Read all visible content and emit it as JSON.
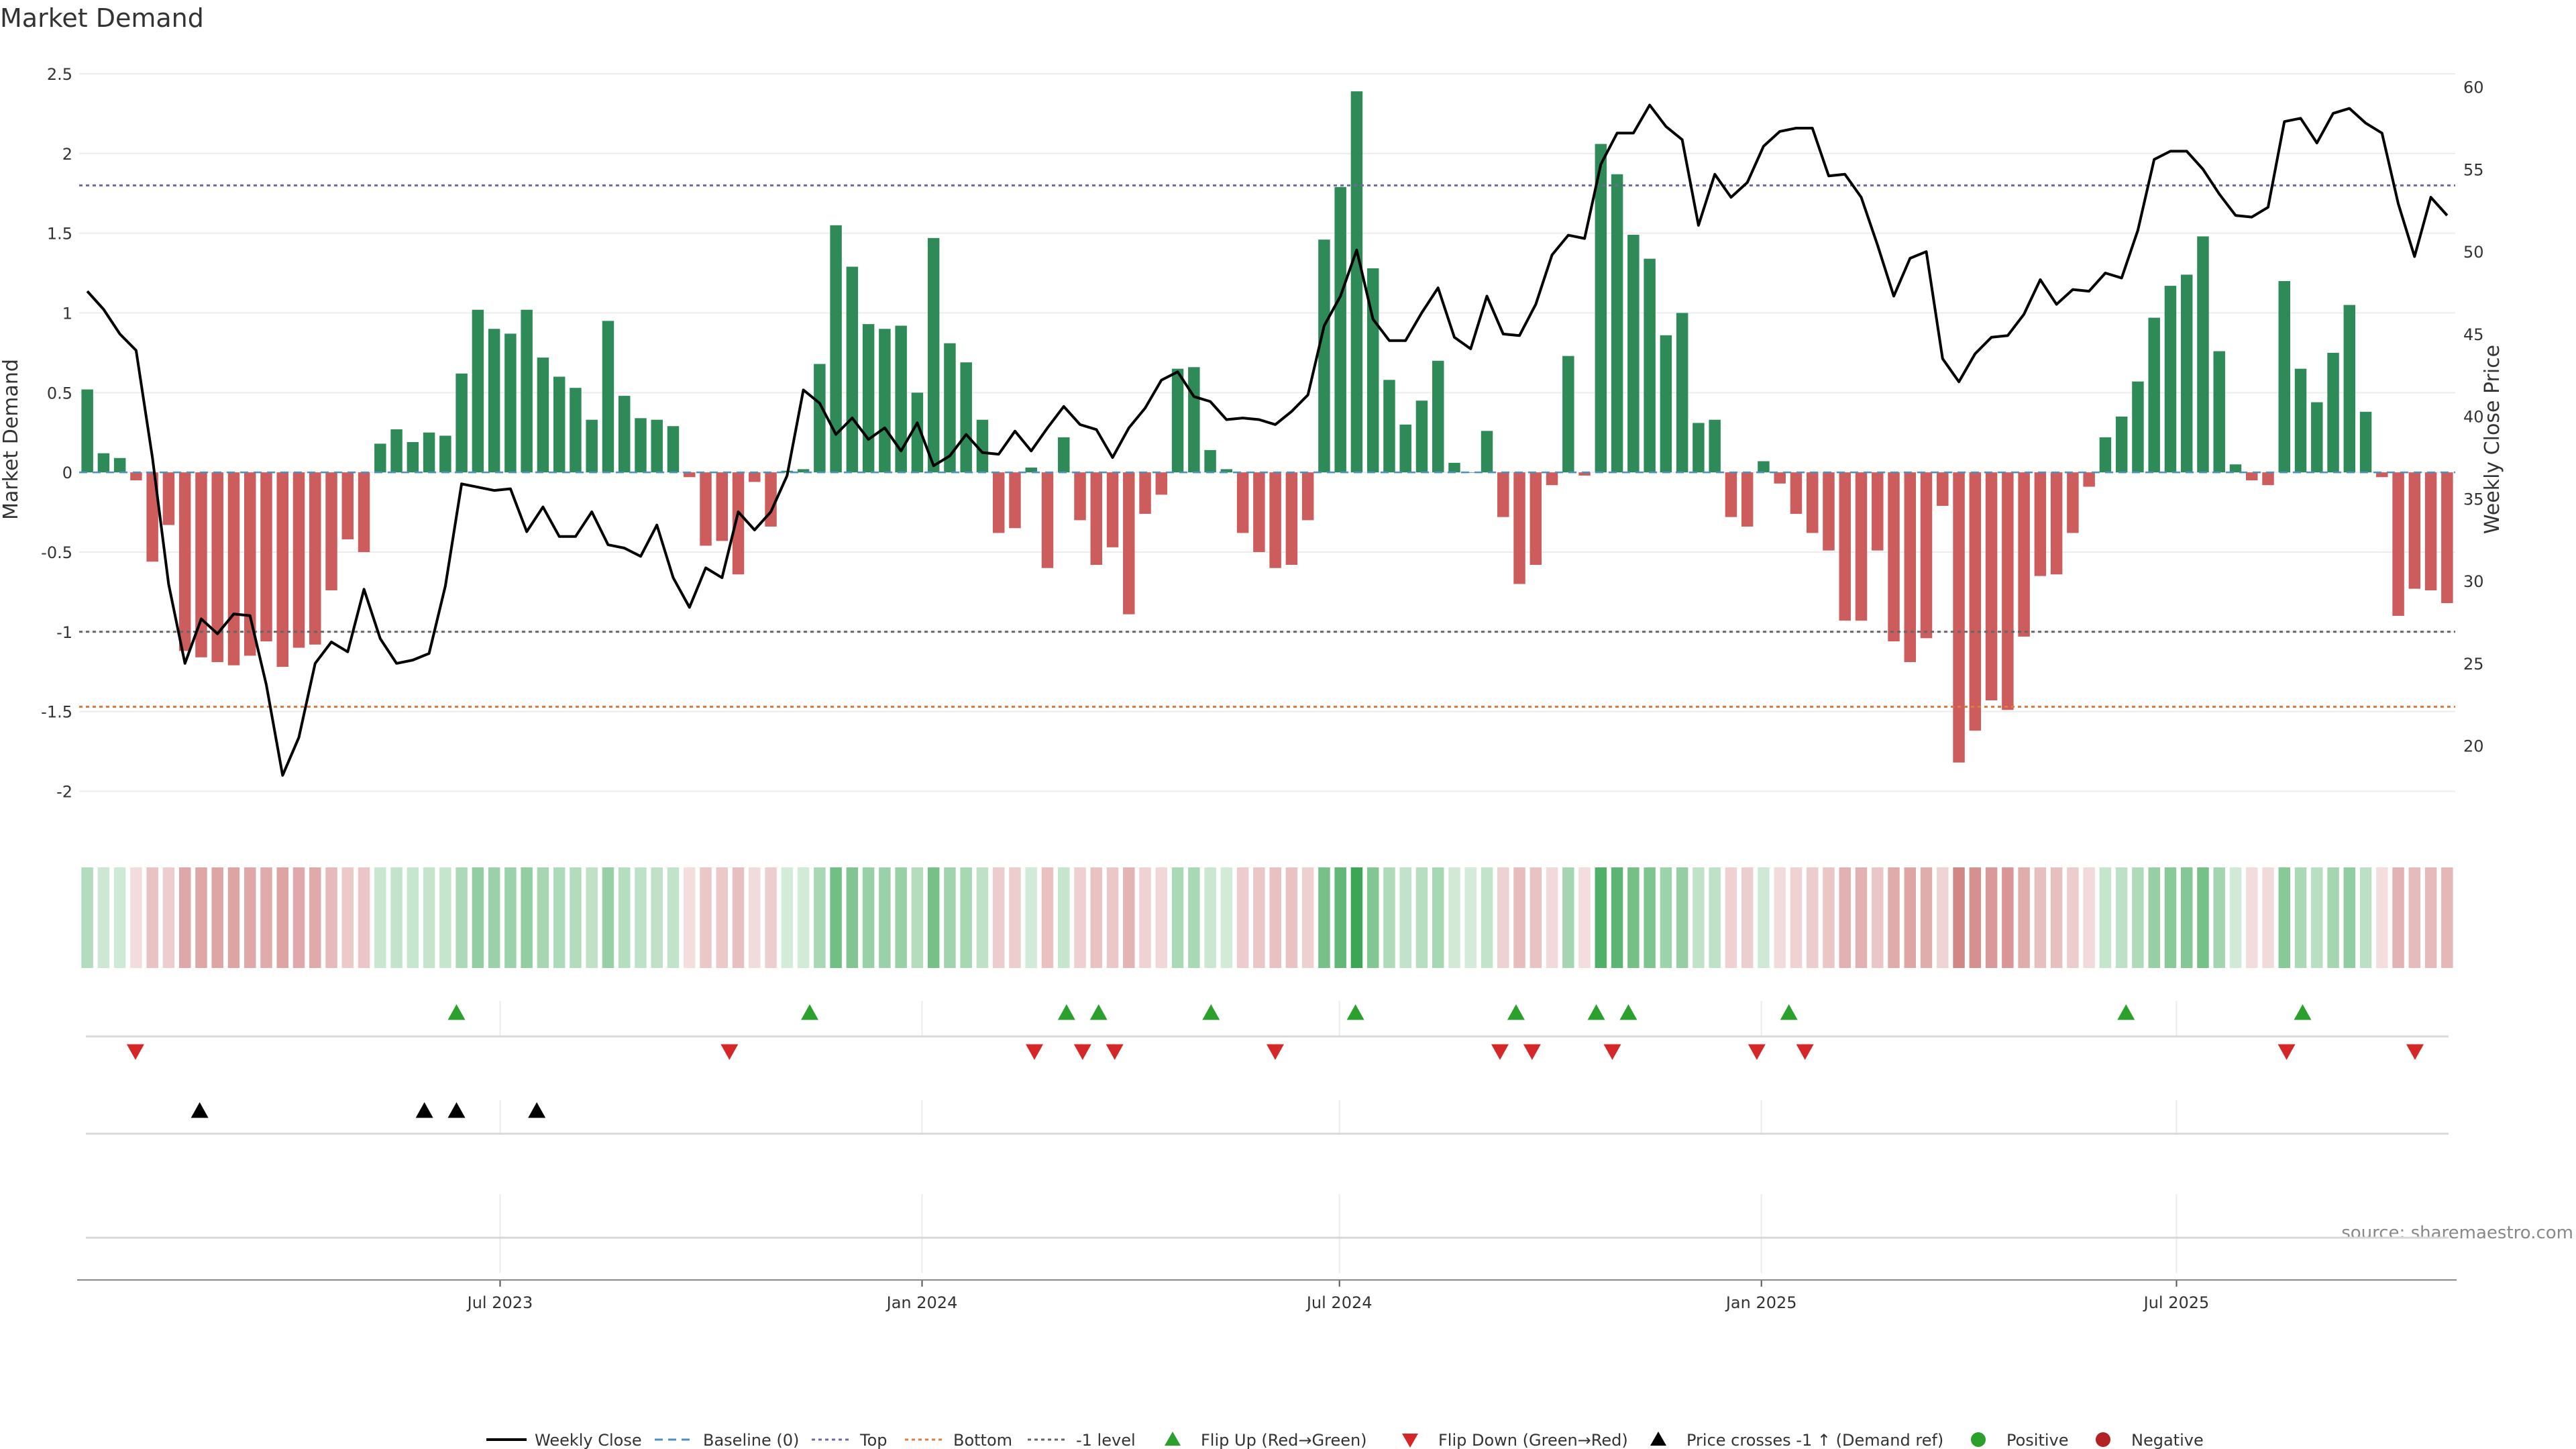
{
  "chart_data": {
    "type": "bar",
    "title": "Market Demand",
    "ylabel_left": "Market Demand",
    "ylabel_right": "Weekly Close Price",
    "source": "source: sharemaestro.com",
    "x_start": "2023-01-02",
    "x_end": "2025-10-27",
    "x_ticks": [
      {
        "date": "2023-07-01",
        "label": "Jul 2023"
      },
      {
        "date": "2024-01-01",
        "label": "Jan 2024"
      },
      {
        "date": "2024-07-01",
        "label": "Jul 2024"
      },
      {
        "date": "2025-01-01",
        "label": "Jan 2025"
      },
      {
        "date": "2025-07-01",
        "label": "Jul 2025"
      }
    ],
    "y_left": {
      "min": -2.2,
      "max": 2.5,
      "ticks": [
        2.5,
        2,
        1.5,
        1,
        0.5,
        0,
        -0.5,
        -1,
        -1.5,
        -2
      ]
    },
    "y_right": {
      "min": 15.3,
      "max": 60.8,
      "ticks": [
        60,
        55,
        50,
        45,
        40,
        35,
        30,
        25,
        20
      ]
    },
    "ref_lines": {
      "top": 1.8,
      "bottom": -1.47,
      "minus_one": -1.0
    },
    "colors": {
      "positive": "#2e8b57",
      "negative": "#cd5c5c",
      "price_line": "#000000",
      "top_line": "#6b6b9b",
      "bottom_line": "#e07b39",
      "flip_up": "#2ca02c",
      "flip_down": "#d62728",
      "cross_marker": "#000000",
      "positive_dot": "#2ca02c",
      "negative_dot": "#b22222"
    },
    "series": [
      {
        "name": "Market Demand",
        "values": [
          0.52,
          0.12,
          0.09,
          -0.05,
          -0.56,
          -0.33,
          -1.12,
          -1.16,
          -1.19,
          -1.21,
          -1.15,
          -1.06,
          -1.22,
          -1.1,
          -1.08,
          -0.74,
          -0.42,
          -0.5,
          0.18,
          0.27,
          0.19,
          0.25,
          0.23,
          0.62,
          1.02,
          0.9,
          0.87,
          1.02,
          0.72,
          0.6,
          0.53,
          0.33,
          0.95,
          0.48,
          0.34,
          0.33,
          0.29,
          -0.03,
          -0.46,
          -0.43,
          -0.64,
          -0.06,
          -0.34,
          0.01,
          0.02,
          0.68,
          1.55,
          1.29,
          0.93,
          0.9,
          0.92,
          0.5,
          1.47,
          0.81,
          0.69,
          0.33,
          -0.38,
          -0.35,
          0.03,
          -0.6,
          0.22,
          -0.3,
          -0.58,
          -0.47,
          -0.89,
          -0.26,
          -0.14,
          0.65,
          0.66,
          0.14,
          0.02,
          -0.38,
          -0.5,
          -0.6,
          -0.58,
          -0.3,
          1.46,
          1.79,
          2.39,
          1.28,
          0.58,
          0.3,
          0.45,
          0.7,
          0.06,
          0.0,
          0.26,
          -0.28,
          -0.7,
          -0.58,
          -0.08,
          0.73,
          -0.02,
          2.06,
          1.87,
          1.49,
          1.34,
          0.86,
          1.0,
          0.31,
          0.33,
          -0.28,
          -0.34,
          0.07,
          -0.07,
          -0.26,
          -0.38,
          -0.49,
          -0.93,
          -0.93,
          -0.49,
          -1.06,
          -1.19,
          -1.04,
          -0.21,
          -1.82,
          -1.62,
          -1.43,
          -1.49,
          -1.03,
          -0.65,
          -0.64,
          -0.38,
          -0.09,
          0.22,
          0.35,
          0.57,
          0.97,
          1.17,
          1.24,
          1.48,
          0.76,
          0.05,
          -0.05,
          -0.08,
          1.2,
          0.65,
          0.44,
          0.75,
          1.05,
          0.38,
          -0.03,
          -0.9,
          -0.73,
          -0.74,
          -0.82
        ]
      },
      {
        "name": "Weekly Close",
        "values": [
          47.6,
          46.5,
          45.0,
          44.0,
          37.5,
          29.8,
          25.0,
          27.7,
          26.8,
          28.0,
          27.9,
          23.7,
          18.2,
          20.5,
          25.0,
          26.3,
          25.7,
          29.5,
          26.5,
          25.0,
          25.2,
          25.6,
          29.7,
          35.9,
          35.7,
          35.5,
          35.6,
          33.0,
          34.5,
          32.7,
          32.7,
          34.2,
          32.2,
          32.0,
          31.5,
          33.4,
          30.2,
          28.4,
          30.8,
          30.2,
          34.2,
          33.1,
          34.2,
          36.4,
          41.6,
          40.8,
          38.9,
          39.9,
          38.6,
          39.3,
          37.9,
          39.6,
          37.0,
          37.6,
          38.9,
          37.8,
          37.7,
          39.1,
          37.9,
          39.3,
          40.6,
          39.5,
          39.2,
          37.5,
          39.3,
          40.5,
          42.2,
          42.7,
          41.2,
          40.9,
          39.8,
          39.9,
          39.8,
          39.5,
          40.3,
          41.3,
          45.5,
          47.3,
          50.1,
          45.9,
          44.6,
          44.6,
          46.3,
          47.8,
          44.8,
          44.1,
          47.3,
          45.0,
          44.9,
          46.8,
          49.8,
          51.0,
          50.8,
          55.3,
          57.2,
          57.2,
          58.9,
          57.6,
          56.8,
          51.6,
          54.7,
          53.3,
          54.2,
          56.4,
          57.3,
          57.5,
          57.5,
          54.6,
          54.7,
          53.3,
          50.4,
          47.3,
          49.6,
          50.0,
          43.5,
          42.1,
          43.8,
          44.8,
          44.9,
          46.2,
          48.3,
          46.8,
          47.7,
          47.6,
          48.7,
          48.4,
          51.3,
          55.6,
          56.1,
          56.1,
          55.0,
          53.5,
          52.2,
          52.1,
          52.7,
          57.9,
          58.1,
          56.6,
          58.4,
          58.7,
          57.8,
          57.2,
          52.9,
          49.7,
          53.3,
          52.2
        ]
      }
    ],
    "flip_up_dates": [
      "2023-06-12",
      "2023-11-13",
      "2024-03-04",
      "2024-03-18",
      "2024-05-06",
      "2024-07-08",
      "2024-09-16",
      "2024-10-21",
      "2024-11-04",
      "2025-01-13",
      "2025-06-09",
      "2025-08-25"
    ],
    "flip_down_dates": [
      "2023-01-23",
      "2023-10-09",
      "2024-02-19",
      "2024-03-11",
      "2024-03-25",
      "2024-06-03",
      "2024-09-09",
      "2024-09-23",
      "2024-10-28",
      "2024-12-30",
      "2025-01-20",
      "2025-08-18",
      "2025-10-13"
    ],
    "price_cross_dates": [
      "2023-02-20",
      "2023-05-29",
      "2023-06-12",
      "2023-07-17"
    ],
    "legend": [
      {
        "label": "Weekly Close",
        "kind": "line"
      },
      {
        "label": "Baseline (0)",
        "kind": "dash"
      },
      {
        "label": "Top",
        "kind": "dot-purple"
      },
      {
        "label": "Bottom",
        "kind": "dot-orange"
      },
      {
        "label": "-1 level",
        "kind": "dot-grey"
      },
      {
        "label": "Flip Up (Red→Green)",
        "kind": "tri-up-green"
      },
      {
        "label": "Flip Down (Green→Red)",
        "kind": "tri-down-red"
      },
      {
        "label": "Price crosses -1 ↑ (Demand ref)",
        "kind": "tri-up-black"
      },
      {
        "label": "Positive",
        "kind": "dot-green"
      },
      {
        "label": "Negative",
        "kind": "dot-red"
      }
    ]
  }
}
